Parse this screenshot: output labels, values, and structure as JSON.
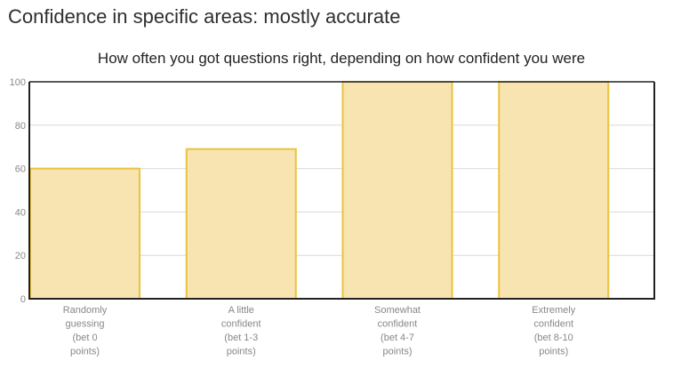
{
  "page": {
    "heading": "Confidence in specific areas: mostly accurate"
  },
  "chart_data": {
    "type": "bar",
    "title": "How often you got questions right, depending on how confident you were",
    "xlabel": "",
    "ylabel": "",
    "categories": [
      [
        "Randomly",
        "guessing",
        "(bet 0",
        "points)"
      ],
      [
        "A little",
        "confident",
        "(bet 1-3",
        "points)"
      ],
      [
        "Somewhat",
        "confident",
        "(bet 4-7",
        "points)"
      ],
      [
        "Extremely",
        "confident",
        "(bet 8-10",
        "points)"
      ]
    ],
    "values": [
      60,
      69,
      100,
      100
    ],
    "ylim": [
      0,
      100
    ],
    "yticks": [
      0,
      20,
      40,
      60,
      80,
      100
    ],
    "grid": true,
    "colors": {
      "bar_fill": "#f7e4b0",
      "bar_stroke": "#ebc23f",
      "axis": "#222222",
      "grid": "#d9d9d9"
    }
  }
}
